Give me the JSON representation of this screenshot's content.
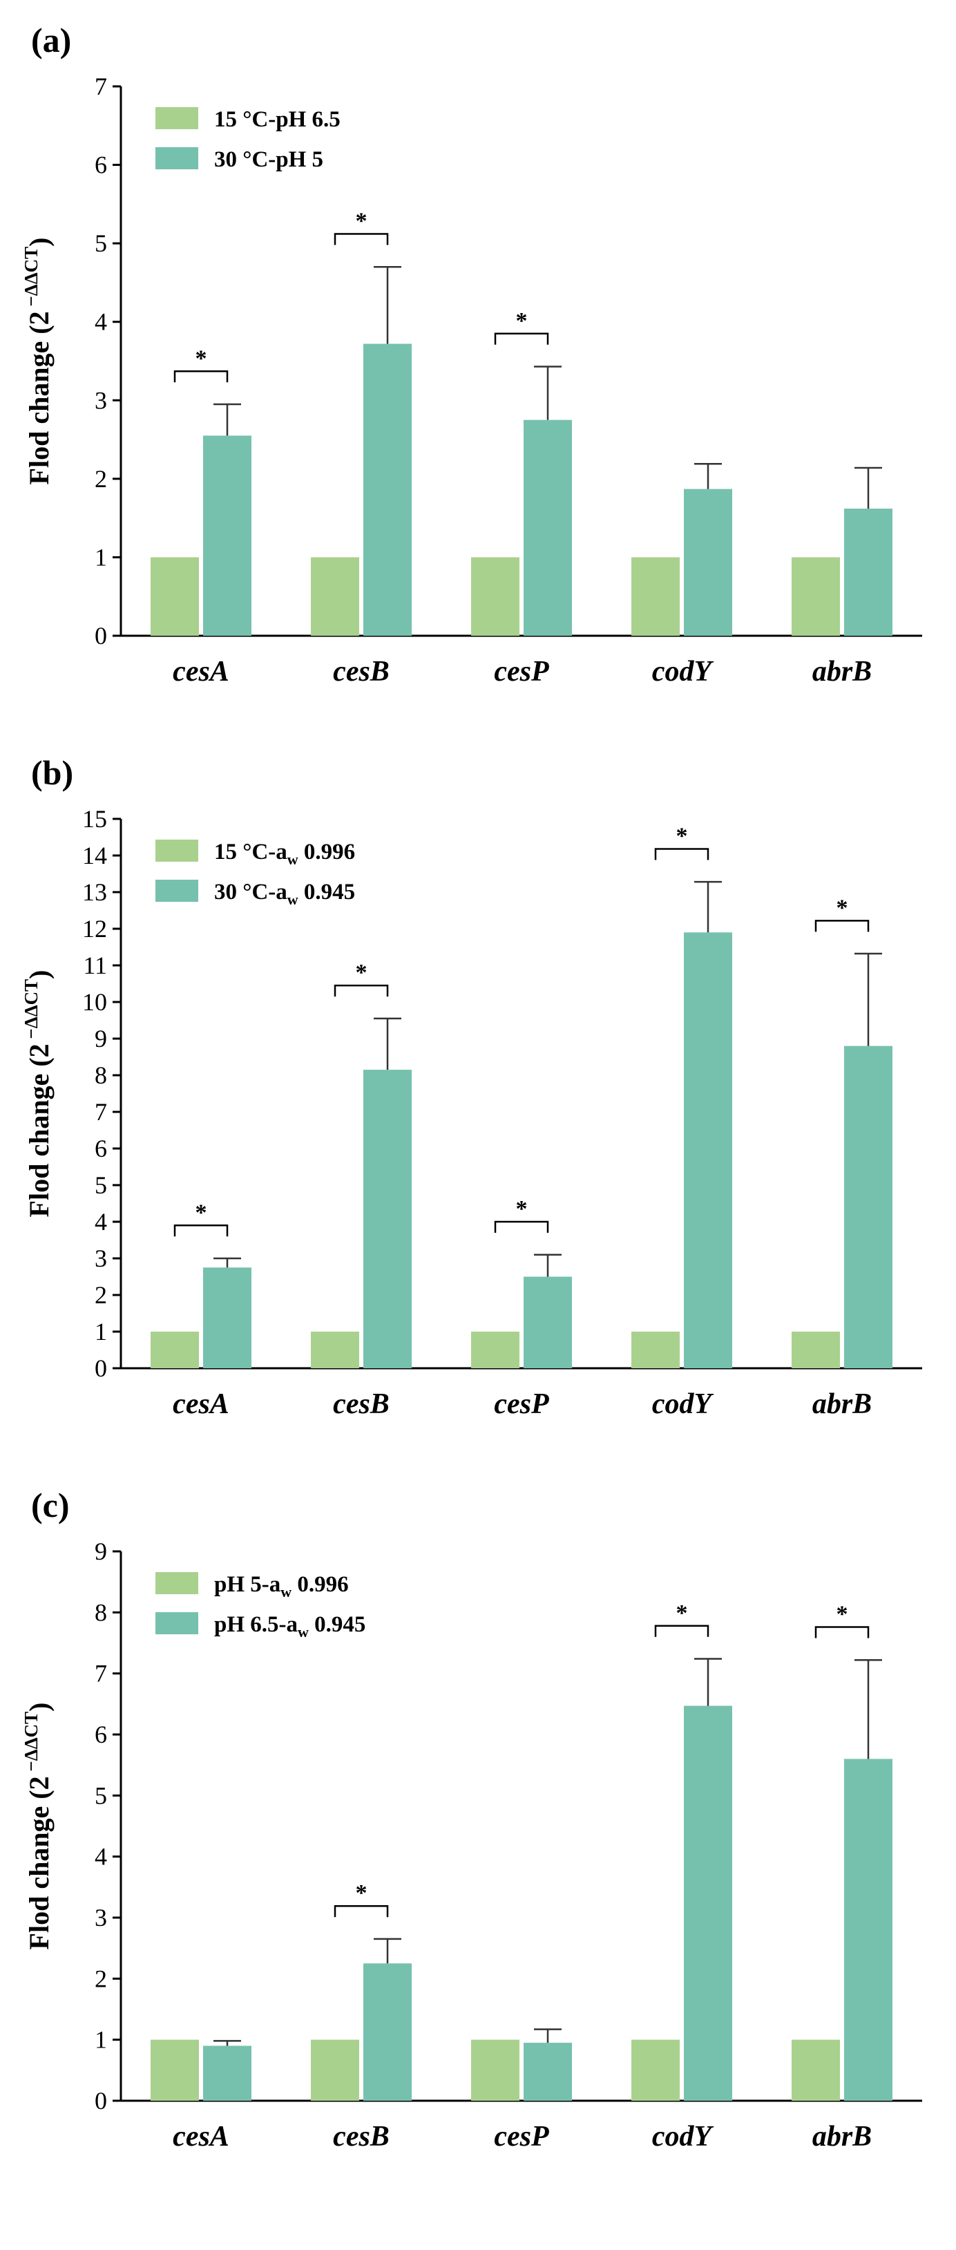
{
  "colors": {
    "light": "#a9d18e",
    "dark": "#76c1ad",
    "axis": "#000000"
  },
  "chart_data": [
    {
      "type": "bar",
      "panel": "(a)",
      "categories": [
        "cesA",
        "cesB",
        "cesP",
        "codY",
        "abrB"
      ],
      "ylabel": "Flod change (2",
      "ylabel_sup": "−ΔΔCT",
      "ylabel_close": ")",
      "ylim": [
        0,
        7
      ],
      "yticks": [
        "0",
        "1",
        "2",
        "3",
        "4",
        "5",
        "6",
        "7"
      ],
      "series": [
        {
          "name": "15 °C-pH 6.5",
          "legend_main": "15 °C-pH 6.5",
          "legend_sub": "",
          "legend_tail": "",
          "values": [
            1,
            1,
            1,
            1,
            1
          ],
          "errors": [
            0,
            0,
            0,
            0,
            0
          ]
        },
        {
          "name": "30 °C-pH 5",
          "legend_main": "30 °C-pH 5",
          "legend_sub": "",
          "legend_tail": "",
          "values": [
            2.55,
            3.72,
            2.75,
            1.87,
            1.62
          ],
          "errors": [
            0.4,
            0.98,
            0.68,
            0.32,
            0.52
          ]
        }
      ],
      "significance": [
        "*",
        "*",
        "*",
        "",
        ""
      ]
    },
    {
      "type": "bar",
      "panel": "(b)",
      "categories": [
        "cesA",
        "cesB",
        "cesP",
        "codY",
        "abrB"
      ],
      "ylabel": "Flod change (2",
      "ylabel_sup": "−ΔΔCT",
      "ylabel_close": ")",
      "ylim": [
        0,
        15
      ],
      "yticks": [
        "0",
        "1",
        "2",
        "3",
        "4",
        "5",
        "6",
        "7",
        "8",
        "9",
        "10",
        "11",
        "12",
        "13",
        "14",
        "15"
      ],
      "series": [
        {
          "name": "15 °C-aw 0.996",
          "legend_main": "15 °C-a",
          "legend_sub": "w",
          "legend_tail": " 0.996",
          "values": [
            1,
            1,
            1,
            1,
            1
          ],
          "errors": [
            0,
            0,
            0,
            0,
            0
          ]
        },
        {
          "name": "30 °C-aw 0.945",
          "legend_main": "30 °C-a",
          "legend_sub": "w",
          "legend_tail": " 0.945",
          "values": [
            2.75,
            8.15,
            2.5,
            11.9,
            8.8
          ],
          "errors": [
            0.25,
            1.4,
            0.6,
            1.38,
            2.52
          ]
        }
      ],
      "significance": [
        "*",
        "*",
        "*",
        "*",
        "*"
      ]
    },
    {
      "type": "bar",
      "panel": "(c)",
      "categories": [
        "cesA",
        "cesB",
        "cesP",
        "codY",
        "abrB"
      ],
      "ylabel": "Flod change (2",
      "ylabel_sup": "−ΔΔCT",
      "ylabel_close": ")",
      "ylim": [
        0,
        9
      ],
      "yticks": [
        "0",
        "1",
        "2",
        "3",
        "4",
        "5",
        "6",
        "7",
        "8",
        "9"
      ],
      "series": [
        {
          "name": "pH 5-aw 0.996",
          "legend_main": "pH 5-a",
          "legend_sub": "w",
          "legend_tail": " 0.996",
          "values": [
            1,
            1,
            1,
            1,
            1
          ],
          "errors": [
            0,
            0,
            0,
            0,
            0
          ]
        },
        {
          "name": "pH 6.5-aw 0.945",
          "legend_main": "pH 6.5-a",
          "legend_sub": "w",
          "legend_tail": " 0.945",
          "values": [
            0.9,
            2.25,
            0.95,
            6.47,
            5.6
          ],
          "errors": [
            0.08,
            0.4,
            0.22,
            0.77,
            1.62
          ]
        }
      ],
      "significance": [
        "",
        "*",
        "",
        "*",
        "*"
      ]
    }
  ]
}
